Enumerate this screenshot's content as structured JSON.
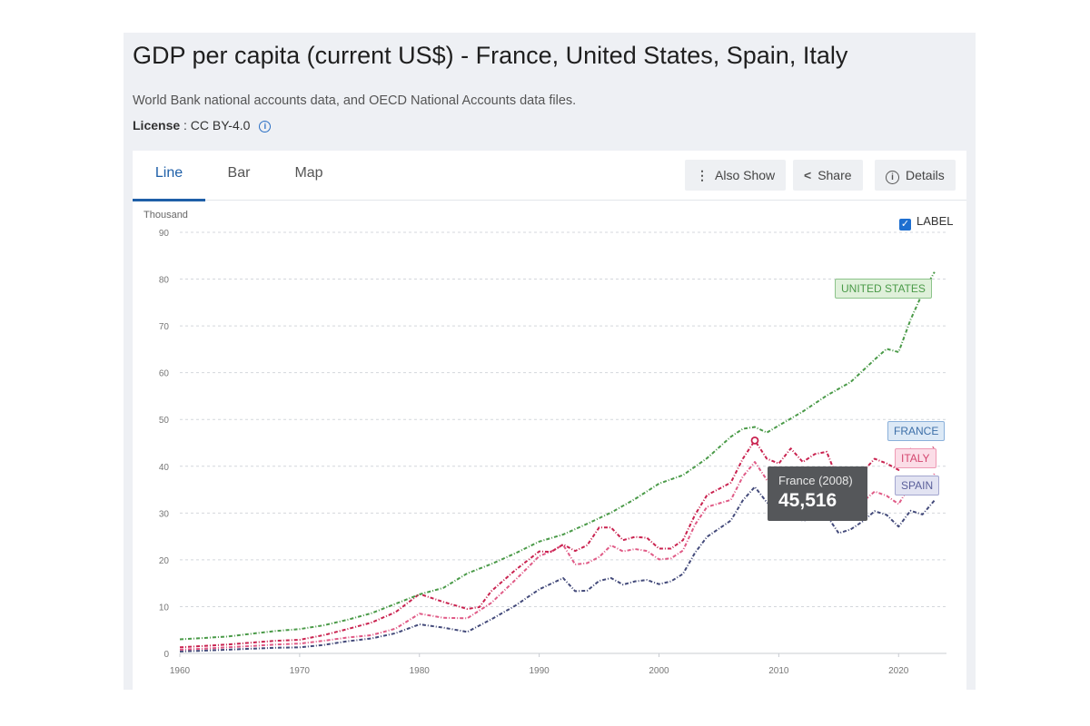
{
  "header": {
    "title": "GDP per capita (current US$) - France, United States, Spain, Italy",
    "subtitle": "World Bank national accounts data, and OECD National Accounts data files.",
    "license_label": "License",
    "license_value": ": CC BY-4.0"
  },
  "tabs": [
    {
      "label": "Line",
      "active": true
    },
    {
      "label": "Bar",
      "active": false
    },
    {
      "label": "Map",
      "active": false
    }
  ],
  "actions": {
    "also_show": "Also Show",
    "share": "Share",
    "details": "Details"
  },
  "label_toggle": {
    "text": "LABEL",
    "checked": true
  },
  "tooltip": {
    "title": "France (2008)",
    "value": "45,516"
  },
  "series_labels": {
    "united_states": "UNITED STATES",
    "france": "FRANCE",
    "italy": "ITALY",
    "spain": "SPAIN"
  },
  "colors": {
    "united_states": "#4a9a48",
    "france": "#c9224f",
    "italy": "#e05a86",
    "spain": "#434a7a",
    "us_label_bg": "#dff0da",
    "us_label_border": "#8cc38a",
    "france_label_bg": "#dce9f6",
    "france_label_border": "#8ab0da",
    "france_label_text": "#3d6fa8",
    "italy_label_bg": "#fbdde7",
    "italy_label_border": "#ee9ab5",
    "italy_label_text": "#d4466f",
    "spain_label_bg": "#e2e3f2",
    "spain_label_border": "#a3a6cf",
    "spain_label_text": "#5a5f9a",
    "accent": "#1e5fa8"
  },
  "chart_data": {
    "type": "line",
    "yunit": "Thousand",
    "xlim": [
      1960,
      2024
    ],
    "ylim": [
      0,
      90
    ],
    "yticks": [
      0,
      10,
      20,
      30,
      40,
      50,
      60,
      70,
      80,
      90
    ],
    "xticks": [
      1960,
      1970,
      1980,
      1990,
      2000,
      2010,
      2020
    ],
    "grid": true,
    "highlight": {
      "series": "France",
      "x": 2008,
      "y": 45.516
    },
    "series": [
      {
        "key": "united_states",
        "name": "UNITED STATES",
        "x": [
          1960,
          1962,
          1964,
          1966,
          1968,
          1970,
          1972,
          1974,
          1976,
          1978,
          1980,
          1982,
          1984,
          1986,
          1988,
          1990,
          1992,
          1994,
          1996,
          1998,
          2000,
          2002,
          2004,
          2006,
          2007,
          2008,
          2009,
          2010,
          2012,
          2014,
          2016,
          2018,
          2019,
          2020,
          2021,
          2022,
          2023
        ],
        "values": [
          3.0,
          3.3,
          3.6,
          4.2,
          4.8,
          5.2,
          6.0,
          7.2,
          8.6,
          10.6,
          12.6,
          14.0,
          17.1,
          19.1,
          21.4,
          23.9,
          25.4,
          27.7,
          30.1,
          33.0,
          36.3,
          38.1,
          41.7,
          46.3,
          48.0,
          48.4,
          47.2,
          48.7,
          51.7,
          55.1,
          58.0,
          62.8,
          65.1,
          64.4,
          71.3,
          77.0,
          81.5
        ]
      },
      {
        "key": "france",
        "name": "FRANCE",
        "x": [
          1960,
          1962,
          1964,
          1966,
          1968,
          1970,
          1972,
          1974,
          1976,
          1978,
          1980,
          1982,
          1984,
          1985,
          1986,
          1988,
          1990,
          1991,
          1992,
          1993,
          1994,
          1995,
          1996,
          1997,
          1998,
          1999,
          2000,
          2001,
          2002,
          2003,
          2004,
          2006,
          2007,
          2008,
          2009,
          2010,
          2011,
          2012,
          2013,
          2014,
          2015,
          2016,
          2017,
          2018,
          2019,
          2020,
          2021,
          2022,
          2023
        ],
        "values": [
          1.3,
          1.6,
          1.9,
          2.3,
          2.7,
          2.9,
          3.9,
          5.2,
          6.6,
          8.8,
          12.7,
          11.0,
          9.5,
          9.9,
          13.3,
          17.8,
          21.8,
          21.7,
          23.3,
          21.9,
          23.1,
          26.9,
          26.9,
          24.2,
          24.9,
          24.7,
          22.4,
          22.4,
          24.2,
          29.6,
          33.8,
          36.5,
          41.6,
          45.5,
          41.6,
          40.6,
          43.8,
          40.9,
          42.6,
          43.1,
          36.7,
          37.1,
          38.8,
          41.6,
          40.6,
          39.2,
          43.7,
          40.9,
          44.4
        ]
      },
      {
        "key": "italy",
        "name": "ITALY",
        "x": [
          1960,
          1962,
          1964,
          1966,
          1968,
          1970,
          1972,
          1974,
          1976,
          1978,
          1980,
          1982,
          1984,
          1986,
          1988,
          1990,
          1991,
          1992,
          1993,
          1994,
          1995,
          1996,
          1997,
          1998,
          1999,
          2000,
          2001,
          2002,
          2003,
          2004,
          2006,
          2007,
          2008,
          2009,
          2010,
          2011,
          2012,
          2013,
          2014,
          2015,
          2016,
          2017,
          2018,
          2019,
          2020,
          2021,
          2022,
          2023
        ],
        "values": [
          0.8,
          1.0,
          1.3,
          1.6,
          1.9,
          2.1,
          2.7,
          3.4,
          3.9,
          5.3,
          8.5,
          7.6,
          7.5,
          10.8,
          15.7,
          20.8,
          21.8,
          23.2,
          19.0,
          19.3,
          20.6,
          23.1,
          21.8,
          22.3,
          21.9,
          20.1,
          20.3,
          22.0,
          27.5,
          31.3,
          32.8,
          37.8,
          40.9,
          37.1,
          36.0,
          38.6,
          35.1,
          35.6,
          35.6,
          30.2,
          30.9,
          32.4,
          34.6,
          33.7,
          31.9,
          36.1,
          34.8,
          38.4
        ]
      },
      {
        "key": "spain",
        "name": "SPAIN",
        "x": [
          1960,
          1962,
          1964,
          1966,
          1968,
          1970,
          1972,
          1974,
          1976,
          1978,
          1980,
          1982,
          1984,
          1986,
          1988,
          1990,
          1992,
          1993,
          1994,
          1995,
          1996,
          1997,
          1998,
          1999,
          2000,
          2001,
          2002,
          2003,
          2004,
          2006,
          2007,
          2008,
          2009,
          2010,
          2011,
          2012,
          2013,
          2014,
          2015,
          2016,
          2017,
          2018,
          2019,
          2020,
          2021,
          2022,
          2023
        ],
        "values": [
          0.4,
          0.6,
          0.8,
          1.0,
          1.2,
          1.3,
          1.8,
          2.6,
          3.2,
          4.3,
          6.2,
          5.5,
          4.6,
          7.3,
          10.2,
          13.7,
          16.1,
          13.3,
          13.4,
          15.5,
          16.1,
          14.7,
          15.4,
          15.7,
          14.8,
          15.4,
          17.0,
          21.5,
          24.9,
          28.4,
          32.7,
          35.6,
          32.3,
          30.5,
          31.7,
          28.3,
          29.1,
          29.5,
          25.7,
          26.5,
          28.2,
          30.4,
          29.6,
          27.1,
          30.5,
          29.7,
          32.7
        ]
      }
    ]
  }
}
